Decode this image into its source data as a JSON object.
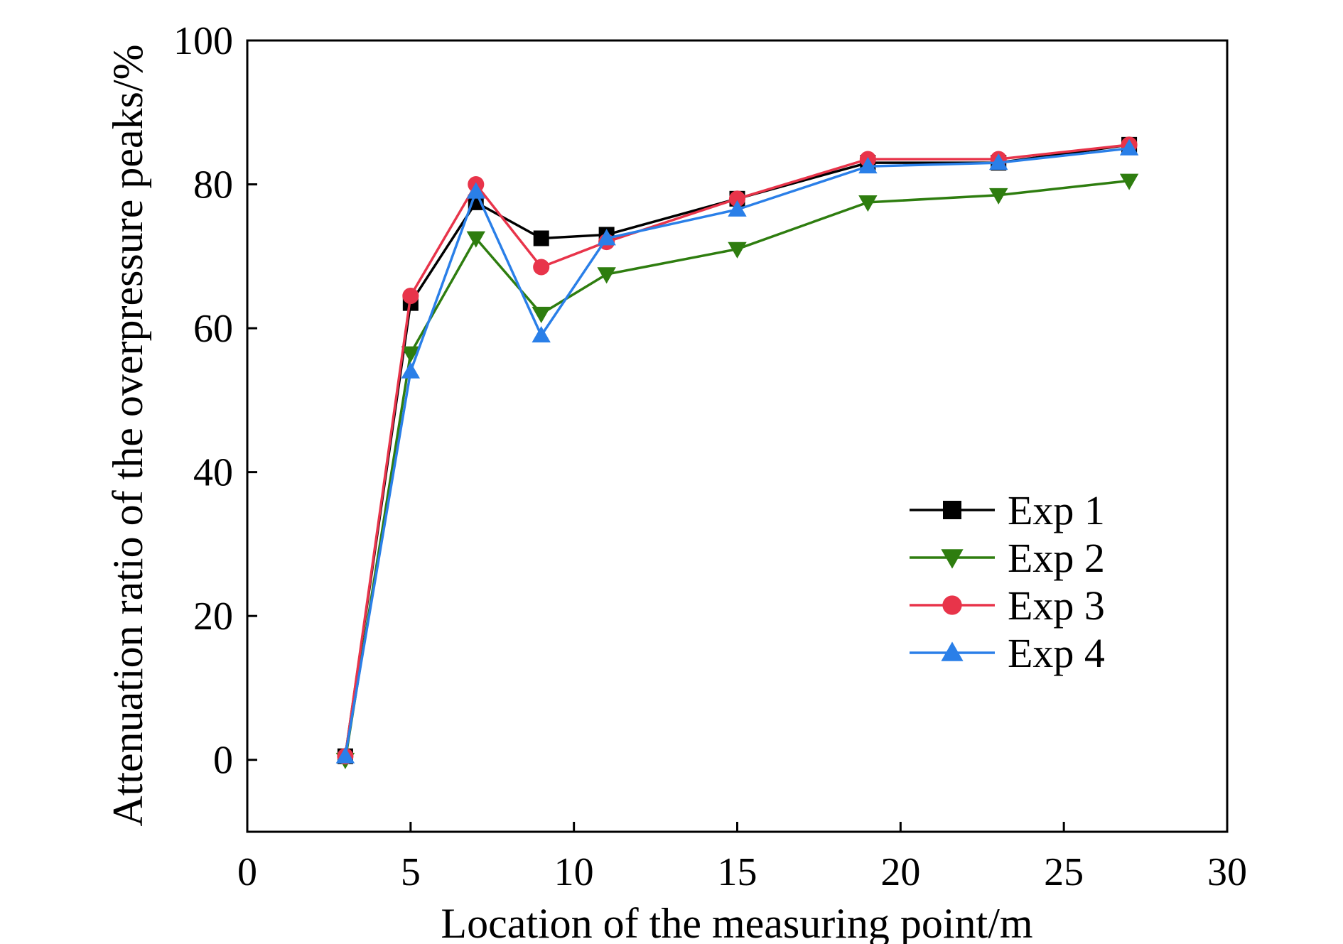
{
  "chart_data": {
    "type": "line",
    "title": "",
    "xlabel": "Location of the measuring point/m",
    "ylabel": "Attenuation ratio of the overpressure peaks/%",
    "xlim": [
      0,
      30
    ],
    "ylim": [
      -10,
      100
    ],
    "xticks": [
      0,
      5,
      10,
      15,
      20,
      25,
      30
    ],
    "yticks": [
      0,
      20,
      40,
      60,
      80,
      100
    ],
    "grid": false,
    "legend_position": "center-right",
    "x": [
      3,
      5,
      7,
      9,
      11,
      15,
      19,
      23,
      27
    ],
    "series": [
      {
        "name": "Exp 1",
        "color": "#000000",
        "marker": "square",
        "values": [
          0.5,
          63.5,
          77.5,
          72.5,
          73.0,
          78.0,
          83.0,
          83.0,
          85.5
        ]
      },
      {
        "name": "Exp 2",
        "color": "#2e7d0f",
        "marker": "triangle-down",
        "values": [
          0.0,
          56.5,
          72.5,
          62.0,
          67.5,
          71.0,
          77.5,
          78.5,
          80.5
        ]
      },
      {
        "name": "Exp 3",
        "color": "#e8344a",
        "marker": "circle",
        "values": [
          0.5,
          64.5,
          80.0,
          68.5,
          72.0,
          78.0,
          83.5,
          83.5,
          85.5
        ]
      },
      {
        "name": "Exp 4",
        "color": "#2a7fe8",
        "marker": "triangle-up",
        "values": [
          0.5,
          54.0,
          79.0,
          59.0,
          72.5,
          76.5,
          82.5,
          83.0,
          85.0
        ]
      }
    ]
  }
}
